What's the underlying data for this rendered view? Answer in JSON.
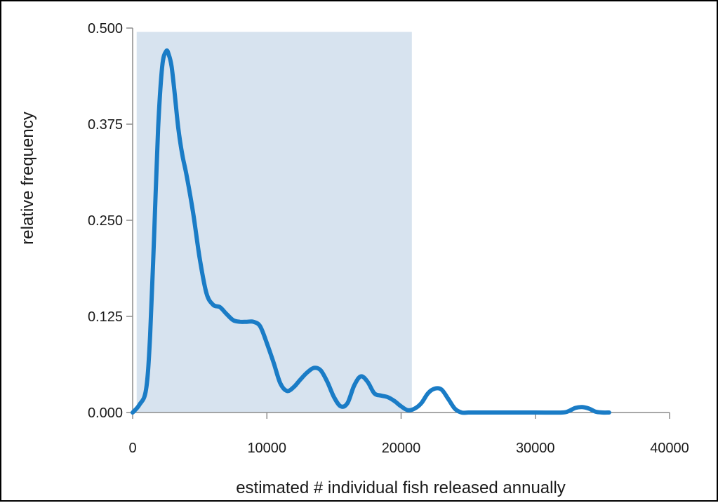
{
  "chart_data": {
    "type": "line",
    "title": "",
    "xlabel": "estimated # individual fish released annually",
    "ylabel": "relative frequency",
    "xlim": [
      0,
      40000
    ],
    "ylim": [
      0,
      0.5
    ],
    "x_ticks": [
      "0",
      "10000",
      "20000",
      "30000",
      "40000"
    ],
    "y_ticks": [
      "0.000",
      "0.125",
      "0.250",
      "0.375",
      "0.500"
    ],
    "grid": false,
    "legend": "none",
    "shaded_region": {
      "x_start": 300,
      "x_end": 20800,
      "y_top": 0.495,
      "color": "#d7e3ef"
    },
    "line_color": "#1a7cc6",
    "series": [
      {
        "x": [
          0,
          500,
          1000,
          1300,
          1600,
          1900,
          2200,
          2500,
          2700,
          2900,
          3100,
          3400,
          3700,
          4000,
          4500,
          5000,
          5500,
          6000,
          6500,
          7000,
          7500,
          8000,
          8500,
          9000,
          9500,
          10000,
          10500,
          11000,
          11500,
          12000,
          12500,
          13000,
          13500,
          14000,
          14500,
          15000,
          15500,
          16000,
          16500,
          17000,
          17500,
          18000,
          18500,
          19000,
          19500,
          20000,
          20500,
          21000,
          21500,
          22000,
          22500,
          23000,
          23500,
          24000,
          24500,
          25000,
          25500,
          26000,
          28000,
          30000,
          32000,
          32500,
          33000,
          33500,
          34000,
          34500,
          35000,
          35500
        ],
        "y": [
          0.0,
          0.01,
          0.03,
          0.1,
          0.23,
          0.37,
          0.45,
          0.47,
          0.465,
          0.45,
          0.42,
          0.37,
          0.335,
          0.31,
          0.26,
          0.2,
          0.155,
          0.14,
          0.137,
          0.128,
          0.12,
          0.118,
          0.118,
          0.118,
          0.112,
          0.09,
          0.065,
          0.038,
          0.028,
          0.033,
          0.043,
          0.052,
          0.058,
          0.055,
          0.04,
          0.02,
          0.008,
          0.012,
          0.035,
          0.047,
          0.04,
          0.025,
          0.022,
          0.02,
          0.015,
          0.008,
          0.003,
          0.005,
          0.012,
          0.025,
          0.031,
          0.03,
          0.018,
          0.005,
          0.0,
          0.0,
          0.0,
          0.0,
          0.0,
          0.0,
          0.0,
          0.002,
          0.006,
          0.007,
          0.005,
          0.001,
          0.0,
          0.0
        ]
      }
    ]
  }
}
